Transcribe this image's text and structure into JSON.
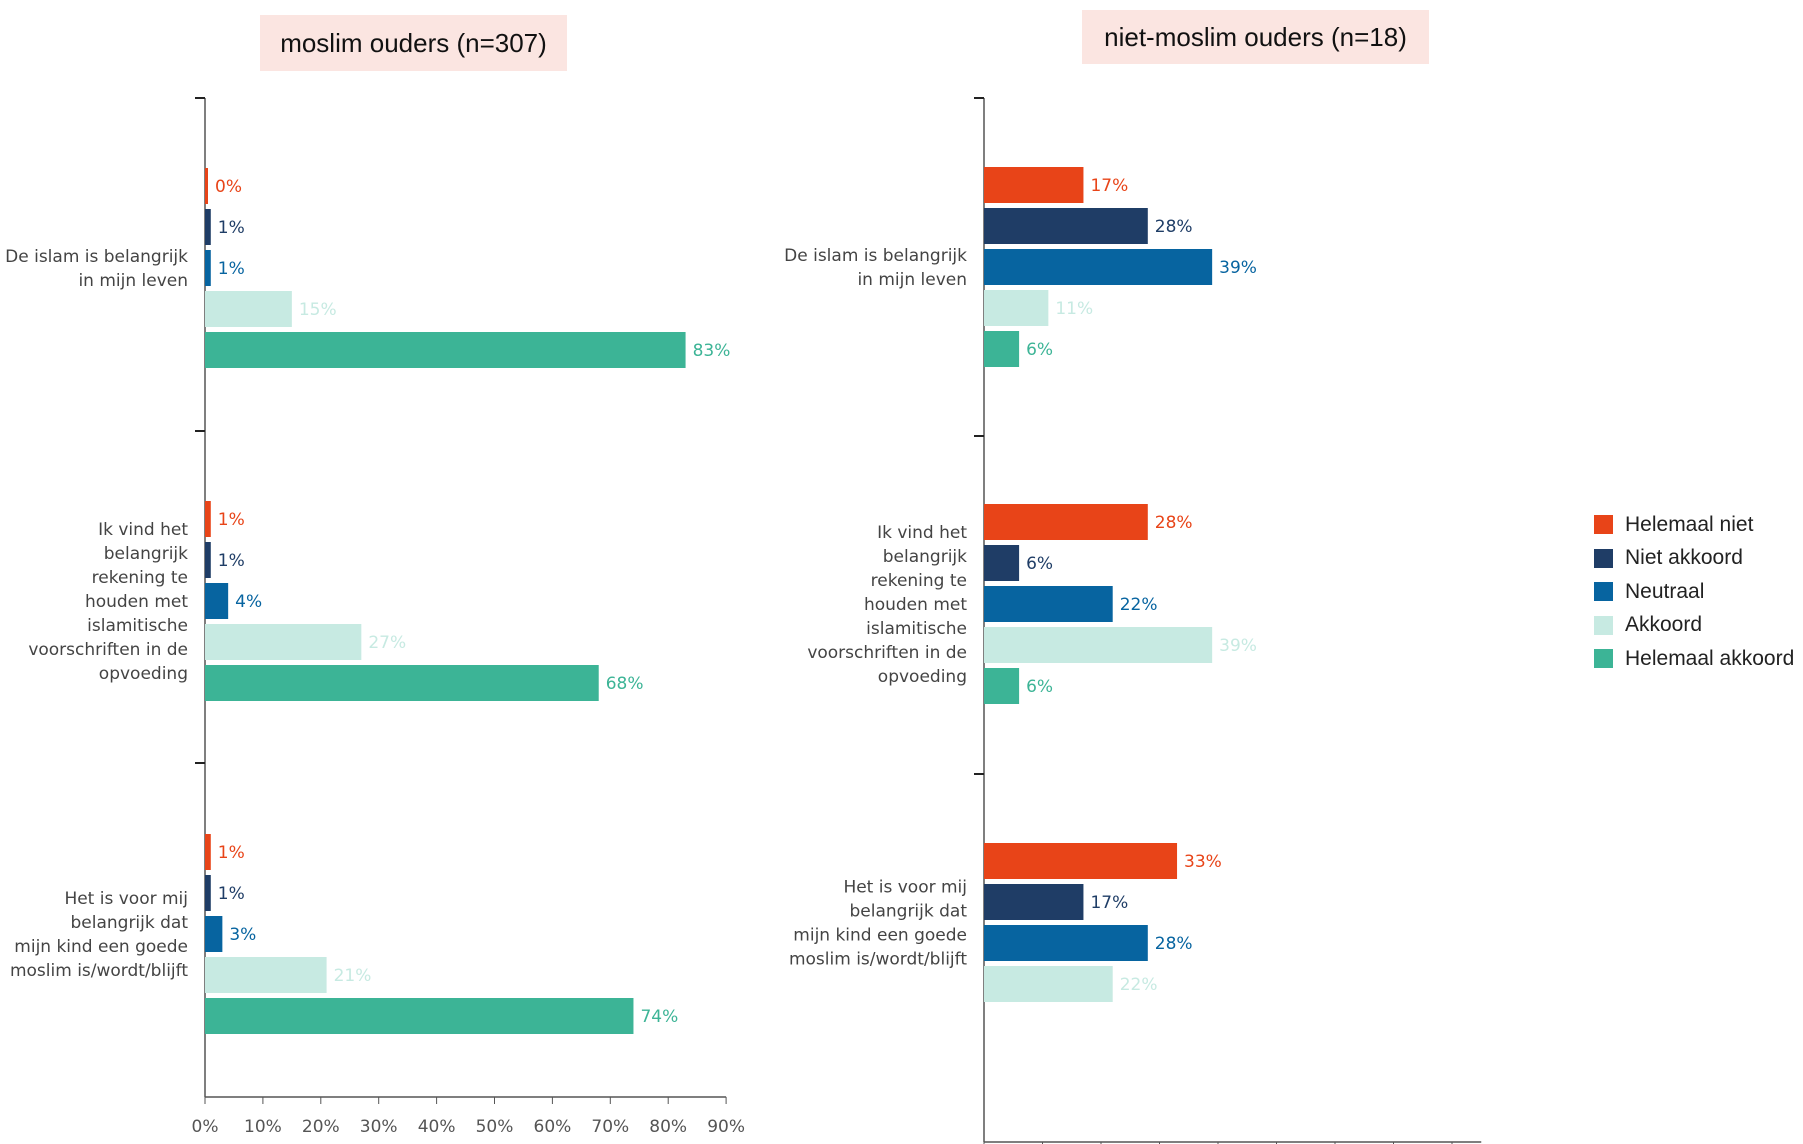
{
  "panel_titles": {
    "left": "moslim ouders (n=307)",
    "right": "niet-moslim ouders (n=18)"
  },
  "legend": {
    "items": [
      {
        "label": "Helemaal niet",
        "color": "#e84418"
      },
      {
        "label": "Niet akkoord",
        "color": "#1f3d66"
      },
      {
        "label": "Neutraal",
        "color": "#0764a0"
      },
      {
        "label": "Akkoord",
        "color": "#c7eae2"
      },
      {
        "label": "Helemaal akkoord",
        "color": "#3cb496"
      }
    ]
  },
  "chart_data": [
    {
      "type": "bar",
      "orientation": "horizontal",
      "title": "moslim ouders (n=307)",
      "categories": [
        "De islam is belangrijk in mijn leven",
        "Ik vind het belangrijk rekening te houden met islamitische voorschriften in de opvoeding",
        "Het is voor mij belangrijk dat mijn kind een goede moslim is/wordt/blijft"
      ],
      "category_label_lines": [
        [
          "De islam is belangrijk",
          "in mijn leven"
        ],
        [
          "Ik vind het",
          "belangrijk",
          "rekening te",
          "houden met",
          "islamitische",
          "voorschriften in de",
          "opvoeding"
        ],
        [
          "Het is voor mij",
          "belangrijk dat",
          "mijn kind een goede",
          "moslim is/wordt/blijft"
        ]
      ],
      "series": [
        {
          "name": "Helemaal niet",
          "values": [
            0,
            1,
            1
          ],
          "labels": [
            "0%",
            "1%",
            "1%"
          ]
        },
        {
          "name": "Niet akkoord",
          "values": [
            1,
            1,
            1
          ],
          "labels": [
            "1%",
            "1%",
            "1%"
          ]
        },
        {
          "name": "Neutraal",
          "values": [
            1,
            4,
            3
          ],
          "labels": [
            "1%",
            "4%",
            "3%"
          ]
        },
        {
          "name": "Akkoord",
          "values": [
            15,
            27,
            21
          ],
          "labels": [
            "15%",
            "27%",
            "21%"
          ]
        },
        {
          "name": "Helemaal akkoord",
          "values": [
            83,
            68,
            74
          ],
          "labels": [
            "83%",
            "68%",
            "74%"
          ]
        }
      ],
      "xlim": [
        0,
        90
      ],
      "xticks": [
        "0%",
        "10%",
        "20%",
        "30%",
        "40%",
        "50%",
        "60%",
        "70%",
        "80%",
        "90%"
      ],
      "grid": false,
      "legend": "right"
    },
    {
      "type": "bar",
      "orientation": "horizontal",
      "title": "niet-moslim ouders (n=18)",
      "categories": [
        "De islam is belangrijk in mijn leven",
        "Ik vind het belangrijk rekening te houden met islamitische voorschriften in de opvoeding",
        "Het is voor mij belangrijk dat mijn kind een goede moslim is/wordt/blijft"
      ],
      "category_label_lines": [
        [
          "De islam is belangrijk",
          "in mijn leven"
        ],
        [
          "Ik vind het",
          "belangrijk",
          "rekening te",
          "houden met",
          "islamitische",
          "voorschriften in de",
          "opvoeding"
        ],
        [
          "Het is voor mij",
          "belangrijk dat",
          "mijn kind een goede",
          "moslim is/wordt/blijft"
        ]
      ],
      "series": [
        {
          "name": "Helemaal niet",
          "values": [
            17,
            28,
            33
          ],
          "labels": [
            "17%",
            "28%",
            "33%"
          ]
        },
        {
          "name": "Niet akkoord",
          "values": [
            28,
            6,
            17
          ],
          "labels": [
            "28%",
            "6%",
            "17%"
          ]
        },
        {
          "name": "Neutraal",
          "values": [
            39,
            22,
            28
          ],
          "labels": [
            "39%",
            "22%",
            "28%"
          ]
        },
        {
          "name": "Akkoord",
          "values": [
            11,
            39,
            22
          ],
          "labels": [
            "11%",
            "39%",
            "22%"
          ]
        },
        {
          "name": "Helemaal akkoord",
          "values": [
            6,
            6,
            null
          ],
          "labels": [
            "6%",
            "6%",
            ""
          ]
        }
      ],
      "xlim": [
        0,
        85
      ],
      "xticks": [
        "0%",
        "10%",
        "20%",
        "30%",
        "40%",
        "50%",
        "60%",
        "70%",
        "80%"
      ],
      "grid": false,
      "legend": "right"
    }
  ]
}
